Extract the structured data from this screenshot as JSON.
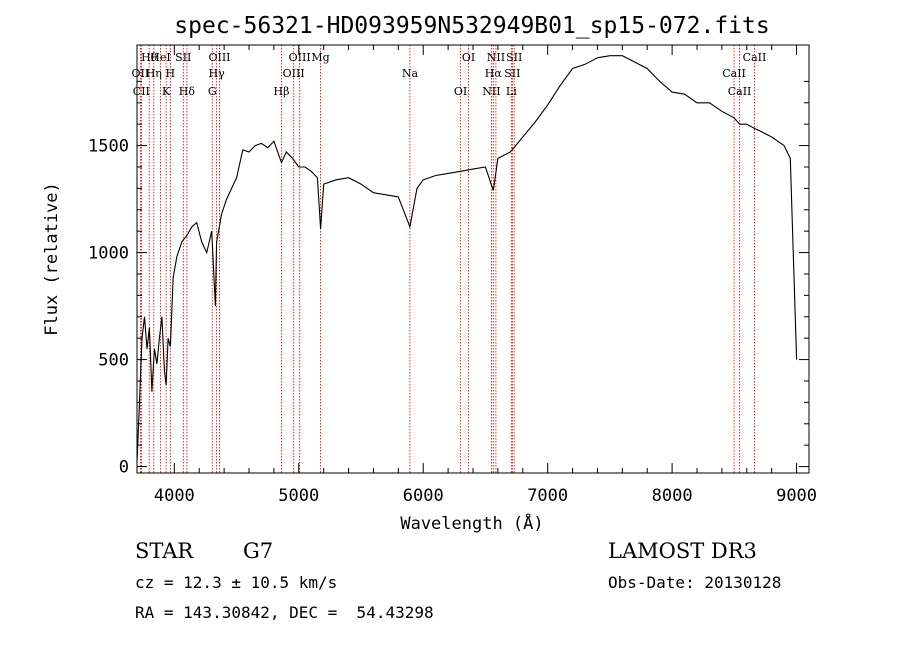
{
  "title": "spec-56321-HD093959N532949B01_sp15-072.fits",
  "info": {
    "object_class": "STAR",
    "subclass": "G7",
    "cz": "cz = 12.3 ± 10.5 km/s",
    "radec": "RA = 143.30842, DEC =  54.43298",
    "survey": "LAMOST DR3",
    "obs_date": "Obs-Date: 20130128"
  },
  "colors": {
    "spectrum": "#000000",
    "line_markers": "#cc0000",
    "axes": "#000000"
  },
  "chart_data": {
    "type": "line",
    "xlabel": "Wavelength (Å)",
    "ylabel": "Flux (relative)",
    "xlim": [
      3700,
      9100
    ],
    "ylim": [
      -30,
      1970
    ],
    "xticks": [
      4000,
      5000,
      6000,
      7000,
      8000,
      9000
    ],
    "yticks": [
      0,
      500,
      1000,
      1500
    ],
    "spectrum": {
      "x": [
        3700,
        3720,
        3740,
        3760,
        3780,
        3800,
        3820,
        3840,
        3860,
        3880,
        3900,
        3920,
        3934,
        3950,
        3968,
        3990,
        4020,
        4060,
        4101,
        4140,
        4180,
        4220,
        4260,
        4300,
        4330,
        4340,
        4380,
        4420,
        4460,
        4500,
        4550,
        4600,
        4650,
        4700,
        4750,
        4800,
        4861,
        4900,
        4950,
        5000,
        5050,
        5100,
        5150,
        5175,
        5200,
        5300,
        5400,
        5500,
        5600,
        5700,
        5800,
        5893,
        5950,
        6000,
        6100,
        6200,
        6300,
        6400,
        6500,
        6563,
        6600,
        6700,
        6800,
        6900,
        7000,
        7100,
        7200,
        7300,
        7400,
        7500,
        7600,
        7700,
        7800,
        7900,
        8000,
        8100,
        8200,
        8300,
        8400,
        8498,
        8542,
        8600,
        8662,
        8700,
        8800,
        8900,
        8950,
        9000
      ],
      "y": [
        20,
        300,
        600,
        700,
        550,
        650,
        350,
        550,
        480,
        600,
        700,
        450,
        380,
        600,
        560,
        880,
        980,
        1050,
        1080,
        1120,
        1140,
        1050,
        1000,
        1100,
        750,
        1050,
        1180,
        1250,
        1300,
        1350,
        1480,
        1470,
        1500,
        1510,
        1490,
        1520,
        1420,
        1470,
        1440,
        1400,
        1400,
        1380,
        1350,
        1110,
        1320,
        1340,
        1350,
        1320,
        1280,
        1270,
        1260,
        1120,
        1300,
        1340,
        1360,
        1370,
        1380,
        1390,
        1400,
        1290,
        1440,
        1470,
        1540,
        1610,
        1690,
        1780,
        1860,
        1880,
        1910,
        1920,
        1920,
        1890,
        1860,
        1800,
        1750,
        1740,
        1700,
        1700,
        1660,
        1630,
        1600,
        1600,
        1580,
        1570,
        1540,
        1500,
        1440,
        500
      ]
    },
    "lines": [
      {
        "name": "Hθ",
        "wl": 3798
      },
      {
        "name": "OII",
        "wl": 3727
      },
      {
        "name": "CII",
        "wl": 3735
      },
      {
        "name": "HeI",
        "wl": 3889
      },
      {
        "name": "Hη",
        "wl": 3835
      },
      {
        "name": "K",
        "wl": 3934
      },
      {
        "name": "SII",
        "wl": 4072
      },
      {
        "name": "H",
        "wl": 3968
      },
      {
        "name": "Hδ",
        "wl": 4101
      },
      {
        "name": "OIII",
        "wl": 4363
      },
      {
        "name": "Hγ",
        "wl": 4340
      },
      {
        "name": "G",
        "wl": 4305
      },
      {
        "name": "OIII",
        "wl": 5007
      },
      {
        "name": "OIII",
        "wl": 4959
      },
      {
        "name": "Hβ",
        "wl": 4861
      },
      {
        "name": "Mg",
        "wl": 5175
      },
      {
        "name": "Na",
        "wl": 5893
      },
      {
        "name": "OI",
        "wl": 6300
      },
      {
        "name": "OI",
        "wl": 6364
      },
      {
        "name": "Hα",
        "wl": 6563
      },
      {
        "name": "NII",
        "wl": 6548
      },
      {
        "name": "NII",
        "wl": 6584
      },
      {
        "name": "SII",
        "wl": 6716
      },
      {
        "name": "Li",
        "wl": 6708
      },
      {
        "name": "SII",
        "wl": 6731
      },
      {
        "name": "CaII",
        "wl": 8498
      },
      {
        "name": "CaII",
        "wl": 8542
      },
      {
        "name": "CaII",
        "wl": 8662
      }
    ]
  }
}
